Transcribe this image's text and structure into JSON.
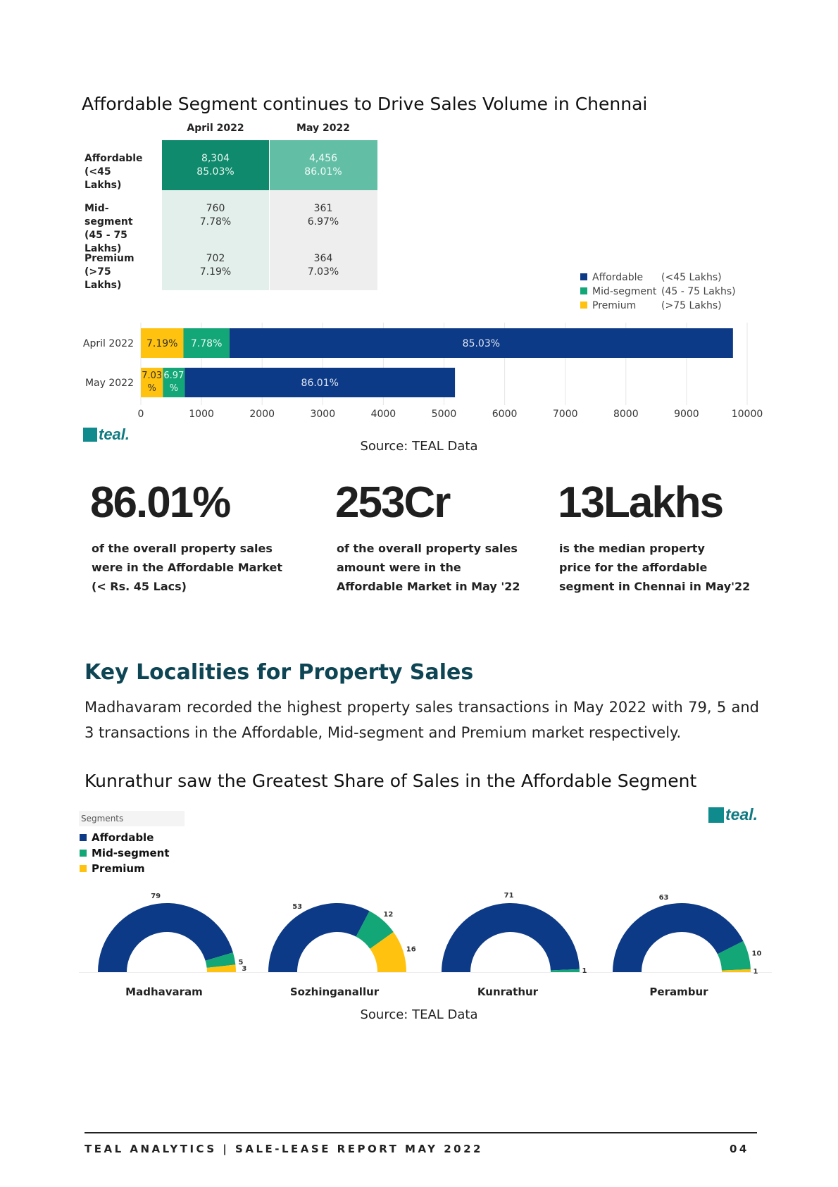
{
  "section1": {
    "title": "Affordable Segment continues to Drive Sales Volume in Chennai",
    "table": {
      "columns": [
        "April 2022",
        "May 2022"
      ],
      "rows": [
        {
          "label": "Affordable\n(<45 Lakhs)",
          "cells": [
            "8,304\n85.03%",
            "4,456\n86.01%"
          ]
        },
        {
          "label": "Mid-segment\n(45 - 75 Lakhs)",
          "cells": [
            "760\n7.78%",
            "361\n6.97%"
          ]
        },
        {
          "label": "Premium\n(>75 Lakhs)",
          "cells": [
            "702\n7.19%",
            "364\n7.03%"
          ]
        }
      ]
    },
    "legend": [
      {
        "name": "Affordable",
        "range": "(<45 Lakhs)"
      },
      {
        "name": "Mid-segment",
        "range": "(45 - 75 Lakhs)"
      },
      {
        "name": "Premium",
        "range": "(>75 Lakhs)"
      }
    ],
    "source": "Source: TEAL Data",
    "logo_text": "teal."
  },
  "colors": {
    "affordable": "#0d3a86",
    "mid_segment": "#13a677",
    "premium": "#ffc20e",
    "teal": "#0f7a82",
    "table_dark": "#0f8a6c",
    "table_light": "#62bfa6"
  },
  "chart_data": [
    {
      "type": "bar",
      "orientation": "horizontal",
      "stacked": true,
      "categories": [
        "April 2022",
        "May 2022"
      ],
      "series": [
        {
          "name": "Premium",
          "values": [
            702,
            364
          ],
          "labels": [
            "7.19%",
            "7.03\n%"
          ]
        },
        {
          "name": "Mid-segment",
          "values": [
            760,
            361
          ],
          "labels": [
            "7.78%",
            "6.97\n%"
          ]
        },
        {
          "name": "Affordable",
          "values": [
            8304,
            4456
          ],
          "labels": [
            "85.03%",
            "86.01%"
          ]
        }
      ],
      "xlim": [
        0,
        10000
      ],
      "xticks": [
        "0",
        "1000",
        "2000",
        "3000",
        "4000",
        "5000",
        "6000",
        "7000",
        "8000",
        "9000",
        "10000"
      ],
      "grid": true,
      "legend": "top-right"
    },
    {
      "type": "pie",
      "variant": "half-donut",
      "title": "Kunrathur saw the Greatest Share of Sales in the Affordable Segment",
      "legend_title": "Segments",
      "legend_items": [
        "Affordable",
        "Mid-segment",
        "Premium"
      ],
      "legend": "top-left",
      "localities": [
        {
          "name": "Madhavaram",
          "values": [
            79,
            5,
            3
          ]
        },
        {
          "name": "Sozhinganallur",
          "values": [
            53,
            12,
            16
          ]
        },
        {
          "name": "Kunrathur",
          "values": [
            71,
            1,
            0
          ]
        },
        {
          "name": "Perambur",
          "values": [
            63,
            10,
            1
          ]
        }
      ],
      "labels": [
        [
          "79",
          "5",
          "3"
        ],
        [
          "53",
          "12",
          "16"
        ],
        [
          "71",
          "1",
          ""
        ],
        [
          "63",
          "10",
          "1"
        ]
      ]
    }
  ],
  "stats": [
    {
      "value": "86.01%",
      "color": "#0f7a82",
      "desc": "of the overall property sales\nwere in the Affordable Market\n(< Rs. 45 Lacs)"
    },
    {
      "value": "253Cr",
      "color": "#0f7a82",
      "desc": "of the overall property sales\namount were in the\nAffordable Market in May '22"
    },
    {
      "value": "13Lakhs",
      "color": "#f6be1a",
      "desc": "is the median property\nprice for the affordable\nsegment in Chennai in May'22"
    }
  ],
  "key_localities": {
    "title": "Key Localities for Property Sales",
    "body": "Madhavaram recorded the highest property sales transactions in May 2022 with 79, 5 and 3 transactions in the Affordable, Mid-segment and Premium market respectively."
  },
  "section2": {
    "title": "Kunrathur saw the Greatest Share of Sales in the Affordable Segment",
    "source": "Source: TEAL Data",
    "logo_text": "teal."
  },
  "footer": {
    "text": "TEAL ANALYTICS | SALE-LEASE REPORT MAY 2022",
    "page": "04"
  }
}
